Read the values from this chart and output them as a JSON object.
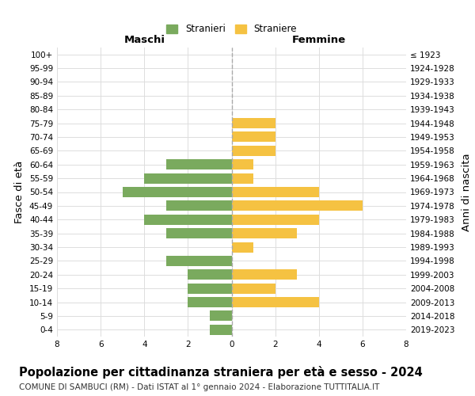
{
  "age_groups": [
    "0-4",
    "5-9",
    "10-14",
    "15-19",
    "20-24",
    "25-29",
    "30-34",
    "35-39",
    "40-44",
    "45-49",
    "50-54",
    "55-59",
    "60-64",
    "65-69",
    "70-74",
    "75-79",
    "80-84",
    "85-89",
    "90-94",
    "95-99",
    "100+"
  ],
  "birth_years": [
    "2019-2023",
    "2014-2018",
    "2009-2013",
    "2004-2008",
    "1999-2003",
    "1994-1998",
    "1989-1993",
    "1984-1988",
    "1979-1983",
    "1974-1978",
    "1969-1973",
    "1964-1968",
    "1959-1963",
    "1954-1958",
    "1949-1953",
    "1944-1948",
    "1939-1943",
    "1934-1938",
    "1929-1933",
    "1924-1928",
    "≤ 1923"
  ],
  "maschi": [
    1,
    1,
    2,
    2,
    2,
    3,
    0,
    3,
    4,
    3,
    5,
    4,
    3,
    0,
    0,
    0,
    0,
    0,
    0,
    0,
    0
  ],
  "femmine": [
    0,
    0,
    4,
    2,
    3,
    0,
    1,
    3,
    4,
    6,
    4,
    1,
    1,
    2,
    2,
    2,
    0,
    0,
    0,
    0,
    0
  ],
  "male_color": "#7aaa5e",
  "female_color": "#f5c242",
  "bar_height": 0.75,
  "xlim": 8,
  "title": "Popolazione per cittadinanza straniera per età e sesso - 2024",
  "subtitle": "COMUNE DI SAMBUCI (RM) - Dati ISTAT al 1° gennaio 2024 - Elaborazione TUTTITALIA.IT",
  "legend_male": "Stranieri",
  "legend_female": "Straniere",
  "xlabel_left": "Maschi",
  "xlabel_right": "Femmine",
  "ylabel_left": "Fasce di età",
  "ylabel_right": "Anni di nascita",
  "background_color": "#ffffff",
  "grid_color": "#dddddd",
  "title_fontsize": 10.5,
  "subtitle_fontsize": 7.5,
  "tick_fontsize": 7.5,
  "label_fontsize": 9.5
}
